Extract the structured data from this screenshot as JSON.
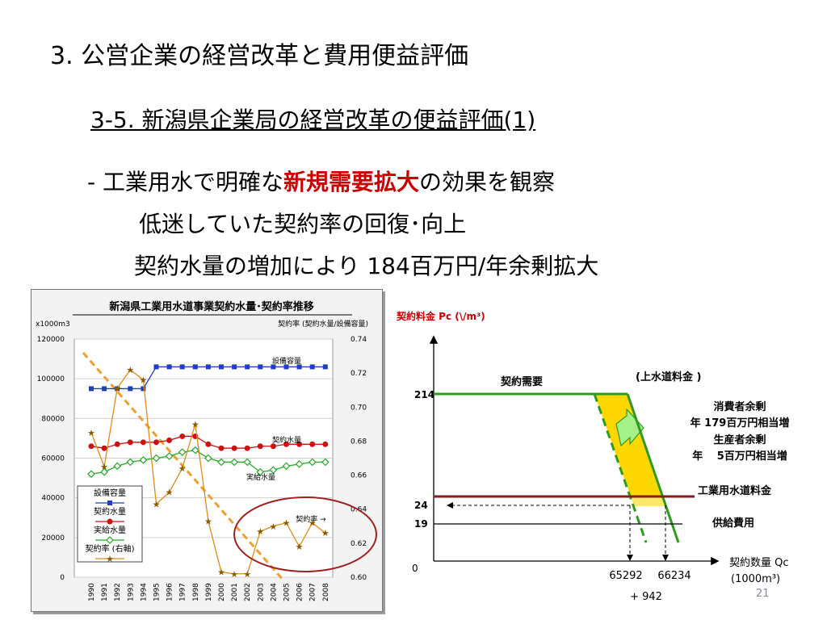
{
  "slide": {
    "title": "3. 公営企業の経営改革と費用便益評価",
    "subtitle": "3-5. 新潟県企業局の経営改革の便益評価(1)",
    "bullet1_pre": "- 工業用水で明確な",
    "bullet1_red": "新規需要拡大",
    "bullet1_post": "の効果を観察",
    "bullet2": "低迷していた契約率の回復･向上",
    "bullet3": "契約水量の増加により 184百万円/年余剰拡大",
    "page_number": "21",
    "colors": {
      "accent_red": "#cc0000",
      "circle": "#a02020",
      "demand_green": "#2e9a1e",
      "surplus_yellow": "#ffd700",
      "price_line": "#8b1a1a"
    }
  },
  "chart_data": [
    {
      "type": "line",
      "title": "新潟県工業用水道事業契約水量･契約率推移",
      "y_unit_label": "x1000m3",
      "y2_label": "契約率 (契約水量/設備容量)",
      "ylim": [
        0,
        120000
      ],
      "y_ticks": [
        "0",
        "20000",
        "40000",
        "60000",
        "80000",
        "100000",
        "120000"
      ],
      "y2lim": [
        0.6,
        0.74
      ],
      "y2_ticks": [
        "0.60",
        "0.62",
        "0.64",
        "0.66",
        "0.68",
        "0.70",
        "0.72",
        "0.74"
      ],
      "x": [
        "1990",
        "1991",
        "1992",
        "1993",
        "1994",
        "1995",
        "1996",
        "1997",
        "1998",
        "1999",
        "2000",
        "2001",
        "2002",
        "2003",
        "2004",
        "2005",
        "2006",
        "2007",
        "2008"
      ],
      "series": [
        {
          "name": "設備容量",
          "axis": "left",
          "color": "#1f3fbf",
          "values": [
            95000,
            95000,
            95000,
            95000,
            95000,
            106000,
            106000,
            106000,
            106000,
            106000,
            106000,
            106000,
            106000,
            106000,
            106000,
            106000,
            106000,
            106000,
            106000
          ]
        },
        {
          "name": "契約水量",
          "axis": "left",
          "color": "#cc1111",
          "values": [
            66000,
            65000,
            67000,
            68000,
            68000,
            68000,
            69000,
            71000,
            71000,
            67000,
            65000,
            65000,
            65000,
            66000,
            66000,
            67000,
            67000,
            67000,
            67000
          ]
        },
        {
          "name": "実給水量",
          "axis": "left",
          "color": "#22aa22",
          "values": [
            52000,
            53000,
            56000,
            58000,
            59000,
            60000,
            61000,
            63000,
            64000,
            60000,
            58000,
            58000,
            58000,
            53000,
            54000,
            56000,
            57000,
            58000,
            58000
          ]
        },
        {
          "name": "契約率 (右軸)",
          "axis": "right",
          "color": "#e08a1a",
          "values": [
            0.685,
            0.665,
            0.711,
            0.722,
            0.716,
            0.643,
            0.65,
            0.664,
            0.69,
            0.633,
            0.603,
            0.602,
            0.602,
            0.627,
            0.63,
            0.632,
            0.618,
            0.632,
            0.626
          ]
        }
      ],
      "annotations": {
        "capacity": "設備容量",
        "contract": "契約水量",
        "actual": "実給水量",
        "rate_arrow": "契約率 →"
      },
      "legend": [
        "設備容量",
        "契約水量",
        "実給水量",
        "契約率 (右軸)"
      ],
      "trend_line": true
    },
    {
      "type": "diagram",
      "ylabel": "契約料金  Pc (\\/m³)",
      "xlabel_line1": "契約数量 Qc",
      "xlabel_line2": "(1000m³)",
      "price_ticks": {
        "p214": "214",
        "p24": "24",
        "p19": "19",
        "p0": "0"
      },
      "demand_label": "契約需要",
      "upper_price_label": "(上水道料金 )",
      "consumer_surplus_1": "消費者余剰",
      "consumer_surplus_2": "年 179百万円相当増",
      "producer_surplus_1": "生産者余剰",
      "producer_surplus_2": "年　 5百万円相当増",
      "industrial_rate_label": "工業用水道料金",
      "supply_cost_label": "供給費用",
      "q1": "65292",
      "q2": "66234",
      "q_diff": "+ 942"
    }
  ]
}
